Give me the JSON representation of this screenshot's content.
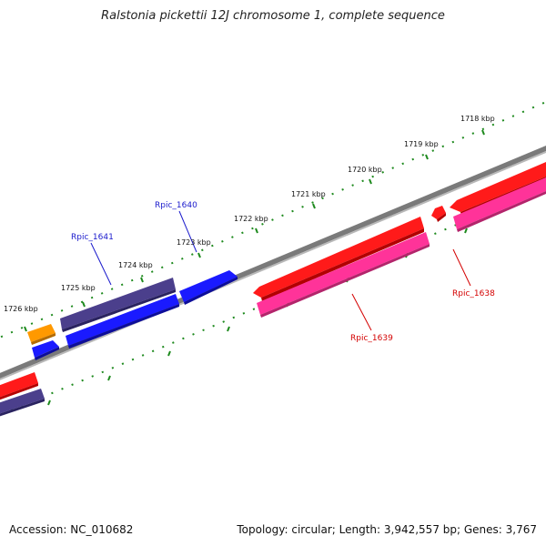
{
  "title": "Ralstonia pickettii 12J chromosome 1, complete sequence",
  "footer": {
    "accession": "Accession: NC_010682",
    "topology": "Topology: circular; Length: 3,942,557 bp; Genes: 3,767"
  },
  "colors": {
    "backbone": "#8a8a8a",
    "tick": "#1e8a1e",
    "red": "#ff1a1a",
    "pink": "#ff3399",
    "navy": "#4b3f8c",
    "blue": "#1a1aff",
    "orange": "#ff9900",
    "label_blue": "#1a1acc",
    "label_red": "#d40000"
  },
  "kbp_labels": [
    "1718 kbp",
    "1719 kbp",
    "1720 kbp",
    "1721 kbp",
    "1722 kbp",
    "1723 kbp",
    "1724 kbp",
    "1725 kbp",
    "1726 kbp"
  ],
  "gene_labels": {
    "rpic_1641": "Rpic_1641",
    "rpic_1640": "Rpic_1640",
    "rpic_1638": "Rpic_1638",
    "rpic_1639": "Rpic_1639"
  }
}
